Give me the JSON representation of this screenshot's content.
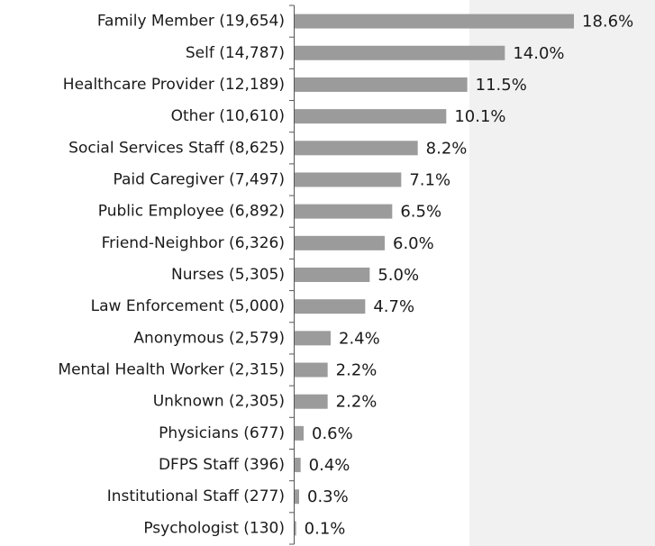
{
  "chart_data": {
    "type": "barh",
    "categories": [
      "Family Member (19,654)",
      "Self (14,787)",
      "Healthcare Provider (12,189)",
      "Other (10,610)",
      "Social Services Staff (8,625)",
      "Paid Caregiver (7,497)",
      "Public Employee (6,892)",
      "Friend-Neighbor (6,326)",
      "Nurses (5,305)",
      "Law Enforcement (5,000)",
      "Anonymous (2,579)",
      "Mental Health Worker (2,315)",
      "Unknown (2,305)",
      "Physicians (677)",
      "DFPS Staff (396)",
      "Institutional Staff (277)",
      "Psychologist (130)"
    ],
    "values": [
      18.6,
      14.0,
      11.5,
      10.1,
      8.2,
      7.1,
      6.5,
      6.0,
      5.0,
      4.7,
      2.4,
      2.2,
      2.2,
      0.6,
      0.4,
      0.3,
      0.1
    ],
    "value_labels": [
      "18.6%",
      "14.0%",
      "11.5%",
      "10.1%",
      "8.2%",
      "7.1%",
      "6.5%",
      "6.0%",
      "5.0%",
      "4.7%",
      "2.4%",
      "2.2%",
      "2.2%",
      "0.6%",
      "0.4%",
      "0.3%",
      "0.1%"
    ],
    "color": "#9b9b9b"
  }
}
